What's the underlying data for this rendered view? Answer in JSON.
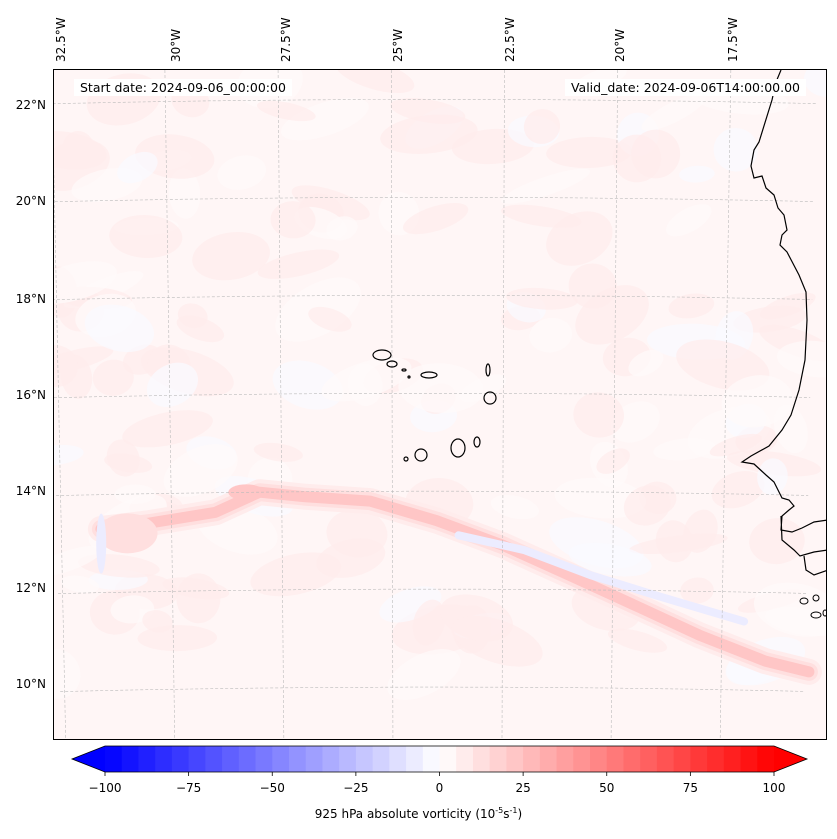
{
  "chart_data": {
    "type": "heatmap",
    "title": "",
    "variable": "925 hPa absolute vorticity",
    "units_prefix": "10",
    "units_exp": "-5",
    "units_s": "s",
    "units_s_exp": "-1",
    "annotations": {
      "start_date": "Start date: 2024-09-06_00:00:00",
      "valid_date": "Valid_date: 2024-09-06T14:00:00.00"
    },
    "lon_ticks": [
      "32.5°W",
      "30°W",
      "27.5°W",
      "25°W",
      "22.5°W",
      "20°W",
      "17.5°W"
    ],
    "lon_values": [
      -32.5,
      -30,
      -27.5,
      -25,
      -22.5,
      -20,
      -17.5
    ],
    "lat_ticks": [
      "22°N",
      "20°N",
      "18°N",
      "16°N",
      "14°N",
      "12°N",
      "10°N"
    ],
    "lat_values": [
      22,
      20,
      18,
      16,
      14,
      12,
      10
    ],
    "extent": {
      "lon": [
        -32.6,
        -15.2
      ],
      "lat": [
        8.9,
        22.6
      ]
    },
    "colorbar": {
      "min": -100,
      "max": 100,
      "step": 5,
      "extend": "both",
      "ticks": [
        -100,
        -75,
        -50,
        -25,
        0,
        25,
        50,
        75,
        100
      ],
      "tick_labels": [
        "−100",
        "−75",
        "−50",
        "−25",
        "0",
        "25",
        "50",
        "75",
        "100"
      ],
      "cmap": "bwr",
      "low_color": "#0000ff",
      "mid_color": "#ffffff",
      "high_color": "#ff0000"
    },
    "features": [
      {
        "name": "vorticity-band-main",
        "description": "positive vorticity band from ~31°W,13.5°N through 28°W,14°N to 16°W,10.5°N",
        "peak_value": 20
      },
      {
        "name": "negative-band",
        "description": "weak negative vorticity streak ~22°W-18°W, 12-13°N",
        "peak_value": -10
      },
      {
        "name": "background",
        "description": "weak positive noise 0-10 over domain"
      }
    ],
    "grid": true
  }
}
